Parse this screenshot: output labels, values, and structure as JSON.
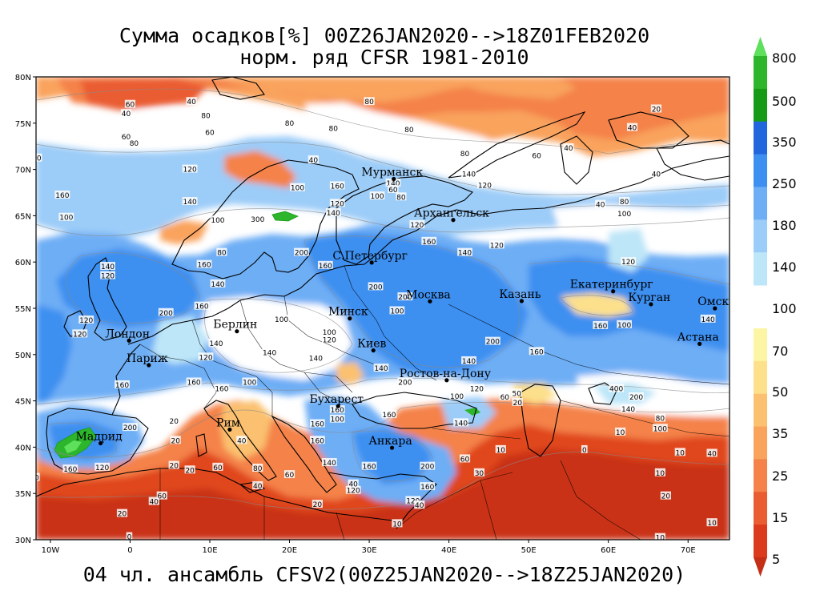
{
  "title_line1": "Сумма осадков[%] 00Z26JAN2020-->18Z01FEB2020",
  "title_line2": "норм. ряд CFSR 1981-2010",
  "footer": "04 чл. ансамбль CFSV2(00Z25JAN2020-->18Z25JAN2020)",
  "map": {
    "lat_labels": [
      "80N",
      "75N",
      "70N",
      "65N",
      "60N",
      "55N",
      "50N",
      "45N",
      "40N",
      "35N",
      "30N"
    ],
    "lon_labels": [
      "10W",
      "0",
      "10E",
      "20E",
      "30E",
      "40E",
      "50E",
      "60E",
      "70E"
    ],
    "cities": [
      {
        "name": "Мурманск",
        "lat": 68.97,
        "lon": 33.08
      },
      {
        "name": "Архангельск",
        "lat": 64.54,
        "lon": 40.54
      },
      {
        "name": "С.Петербург",
        "lat": 59.94,
        "lon": 30.31
      },
      {
        "name": "Москва",
        "lat": 55.75,
        "lon": 37.62
      },
      {
        "name": "Казань",
        "lat": 55.79,
        "lon": 49.12
      },
      {
        "name": "Екатеринбург",
        "lat": 56.84,
        "lon": 60.6
      },
      {
        "name": "Курган",
        "lat": 55.44,
        "lon": 65.34
      },
      {
        "name": "Омск",
        "lat": 54.99,
        "lon": 73.37
      },
      {
        "name": "Астана",
        "lat": 51.16,
        "lon": 71.45
      },
      {
        "name": "Минск",
        "lat": 53.9,
        "lon": 27.56
      },
      {
        "name": "Киев",
        "lat": 50.45,
        "lon": 30.52
      },
      {
        "name": "Берлин",
        "lat": 52.52,
        "lon": 13.4
      },
      {
        "name": "Лондон",
        "lat": 51.51,
        "lon": -0.13
      },
      {
        "name": "Париж",
        "lat": 48.86,
        "lon": 2.35
      },
      {
        "name": "Ростов-на-Дону",
        "lat": 47.23,
        "lon": 39.72
      },
      {
        "name": "Бухарест",
        "lat": 44.43,
        "lon": 26.1
      },
      {
        "name": "Рим",
        "lat": 41.9,
        "lon": 12.5
      },
      {
        "name": "Мадрид",
        "lat": 40.42,
        "lon": -3.7
      },
      {
        "name": "Анкара",
        "lat": 39.93,
        "lon": 32.86
      }
    ],
    "contour_values": [
      {
        "t": "100",
        "lat": 78.7,
        "lon": -13.5
      },
      {
        "t": "40",
        "lon": -0.5,
        "lat": 76
      },
      {
        "t": "60",
        "lon": 0,
        "lat": 77
      },
      {
        "t": "40",
        "lon": 7.7,
        "lat": 77.3
      },
      {
        "t": "80",
        "lon": 9.5,
        "lat": 75.8
      },
      {
        "t": "80",
        "lon": 25.5,
        "lat": 74.4
      },
      {
        "t": "80",
        "lon": 20,
        "lat": 75
      },
      {
        "t": "60",
        "lon": 10,
        "lat": 74
      },
      {
        "t": "80",
        "lon": 30,
        "lat": 77.3
      },
      {
        "t": "80",
        "lon": 35,
        "lat": 74.3
      },
      {
        "t": "80",
        "lon": 42,
        "lat": 71.7
      },
      {
        "t": "60",
        "lon": -0.5,
        "lat": 73.5
      },
      {
        "t": "80",
        "lon": 0.5,
        "lat": 72.8
      },
      {
        "t": "40",
        "lon": 23,
        "lat": 71
      },
      {
        "t": "60",
        "lon": 51,
        "lat": 71.5
      },
      {
        "t": "40",
        "lon": 55,
        "lat": 72.3
      },
      {
        "t": "20",
        "lon": 66,
        "lat": 76.5
      },
      {
        "t": "40",
        "lon": 63,
        "lat": 74.5
      },
      {
        "t": "40",
        "lon": 66,
        "lat": 69.5
      },
      {
        "t": "120",
        "lon": -12,
        "lat": 71.2
      },
      {
        "t": "140",
        "lon": -13,
        "lat": 68.8
      },
      {
        "t": "120",
        "lon": 7.5,
        "lat": 70
      },
      {
        "t": "160",
        "lon": -8.5,
        "lat": 67.2
      },
      {
        "t": "140",
        "lon": 7.5,
        "lat": 66.5
      },
      {
        "t": "100",
        "lon": -8,
        "lat": 64.8
      },
      {
        "t": "100",
        "lon": 11,
        "lat": 64.5
      },
      {
        "t": "160",
        "lon": 26,
        "lat": 68.2
      },
      {
        "t": "100",
        "lon": 21,
        "lat": 68
      },
      {
        "t": "120",
        "lon": 26,
        "lat": 66.3
      },
      {
        "t": "140",
        "lon": 33,
        "lat": 68.5
      },
      {
        "t": "60",
        "lon": 33,
        "lat": 67.8
      },
      {
        "t": "100",
        "lon": 31,
        "lat": 67.1
      },
      {
        "t": "80",
        "lon": 34,
        "lat": 67
      },
      {
        "t": "140",
        "lon": 25.5,
        "lat": 65.3
      },
      {
        "t": "140",
        "lon": 42.5,
        "lat": 69.5
      },
      {
        "t": "120",
        "lon": 44.5,
        "lat": 68.3
      },
      {
        "t": "40",
        "lon": 59,
        "lat": 66.2
      },
      {
        "t": "80",
        "lon": 62,
        "lat": 66.5
      },
      {
        "t": "100",
        "lon": 62,
        "lat": 65.2
      },
      {
        "t": "120",
        "lon": 36,
        "lat": 64
      },
      {
        "t": "160",
        "lon": 37.5,
        "lat": 62.2
      },
      {
        "t": "120",
        "lon": 46,
        "lat": 61.8
      },
      {
        "t": "140",
        "lon": 42,
        "lat": 61
      },
      {
        "t": "120",
        "lon": 62.5,
        "lat": 60
      },
      {
        "t": "300",
        "lon": 16,
        "lat": 64.6
      },
      {
        "t": "200",
        "lon": 21.5,
        "lat": 61
      },
      {
        "t": "160",
        "lon": 24.5,
        "lat": 59.6
      },
      {
        "t": "80",
        "lon": 11.5,
        "lat": 61
      },
      {
        "t": "160",
        "lon": 9.3,
        "lat": 59.7
      },
      {
        "t": "140",
        "lon": -2.8,
        "lat": 59.5
      },
      {
        "t": "120",
        "lon": -2.8,
        "lat": 58.5
      },
      {
        "t": "140",
        "lon": 11,
        "lat": 57.6
      },
      {
        "t": "200",
        "lon": 30.8,
        "lat": 57.3
      },
      {
        "t": "200",
        "lon": 34.5,
        "lat": 56.2
      },
      {
        "t": "100",
        "lon": 33.5,
        "lat": 54.7
      },
      {
        "t": "160",
        "lon": 9,
        "lat": 55.2
      },
      {
        "t": "200",
        "lon": 4.5,
        "lat": 54.5
      },
      {
        "t": "100",
        "lon": 19,
        "lat": 53.8
      },
      {
        "t": "100",
        "lon": 25,
        "lat": 52.4
      },
      {
        "t": "120",
        "lon": 25,
        "lat": 51.6
      },
      {
        "t": "140",
        "lon": 10.8,
        "lat": 51.2
      },
      {
        "t": "140",
        "lon": 17.5,
        "lat": 50.2
      },
      {
        "t": "140",
        "lon": 23.3,
        "lat": 49.6
      },
      {
        "t": "140",
        "lon": 31.5,
        "lat": 48.5
      },
      {
        "t": "200",
        "lon": 45.5,
        "lat": 51.4
      },
      {
        "t": "160",
        "lon": 51,
        "lat": 50.3
      },
      {
        "t": "140",
        "lon": 42.5,
        "lat": 49.3
      },
      {
        "t": "160",
        "lon": 59,
        "lat": 53.1
      },
      {
        "t": "100",
        "lon": 62,
        "lat": 53.2
      },
      {
        "t": "140",
        "lon": 72.5,
        "lat": 53.8
      },
      {
        "t": "120",
        "lon": -5.5,
        "lat": 53.7
      },
      {
        "t": "120",
        "lon": -6.3,
        "lat": 52.2
      },
      {
        "t": "160",
        "lon": -1,
        "lat": 46.7
      },
      {
        "t": "120",
        "lon": 9.5,
        "lat": 49.7
      },
      {
        "t": "160",
        "lon": 8,
        "lat": 47
      },
      {
        "t": "100",
        "lon": 15,
        "lat": 47
      },
      {
        "t": "160",
        "lon": 11.5,
        "lat": 46.3
      },
      {
        "t": "160",
        "lon": 26,
        "lat": 44
      },
      {
        "t": "100",
        "lon": 26,
        "lat": 43
      },
      {
        "t": "160",
        "lon": 32.5,
        "lat": 43.5
      },
      {
        "t": "200",
        "lon": 34.5,
        "lat": 47
      },
      {
        "t": "100",
        "lon": 41,
        "lat": 45.5
      },
      {
        "t": "120",
        "lon": 43.5,
        "lat": 46.3
      },
      {
        "t": "60",
        "lon": 47,
        "lat": 45.4
      },
      {
        "t": "50",
        "lon": 48.5,
        "lat": 45.8
      },
      {
        "t": "20",
        "lon": 48.6,
        "lat": 44.8
      },
      {
        "t": "400",
        "lon": 61,
        "lat": 46.3
      },
      {
        "t": "200",
        "lon": 63.5,
        "lat": 45.4
      },
      {
        "t": "140",
        "lon": 62.5,
        "lat": 44.1
      },
      {
        "t": "80",
        "lon": 66.5,
        "lat": 43.1
      },
      {
        "t": "100",
        "lon": 66.5,
        "lat": 42
      },
      {
        "t": "200",
        "lon": -13,
        "lat": 44
      },
      {
        "t": "200",
        "lon": 0,
        "lat": 42.1
      },
      {
        "t": "20",
        "lon": 5.5,
        "lat": 42.8
      },
      {
        "t": "20",
        "lon": 5.7,
        "lat": 40.7
      },
      {
        "t": "40",
        "lon": 14,
        "lat": 40.7
      },
      {
        "t": "160",
        "lon": 23.5,
        "lat": 42.5
      },
      {
        "t": "160",
        "lon": 23.5,
        "lat": 40.7
      },
      {
        "t": "140",
        "lon": 25,
        "lat": 38.3
      },
      {
        "t": "140",
        "lon": 41.5,
        "lat": 42.6
      },
      {
        "t": "160",
        "lon": 30,
        "lat": 37.9
      },
      {
        "t": "200",
        "lon": 37.3,
        "lat": 37.9
      },
      {
        "t": "60",
        "lon": 42,
        "lat": 38.7
      },
      {
        "t": "30",
        "lon": 43.8,
        "lat": 37.2
      },
      {
        "t": "10",
        "lon": 46.5,
        "lat": 39.7
      },
      {
        "t": "0",
        "lon": 57,
        "lat": 39.7
      },
      {
        "t": "10",
        "lon": 61.5,
        "lat": 41.6
      },
      {
        "t": "10",
        "lon": 66.5,
        "lat": 37.2
      },
      {
        "t": "20",
        "lon": 67.2,
        "lat": 34.7
      },
      {
        "t": "40",
        "lon": 73,
        "lat": 39.3
      },
      {
        "t": "10",
        "lon": 69,
        "lat": 39.4
      },
      {
        "t": "10",
        "lon": 66.5,
        "lat": 30.2
      },
      {
        "t": "120",
        "lon": -3.5,
        "lat": 37.8
      },
      {
        "t": "160",
        "lon": -7.5,
        "lat": 37.6
      },
      {
        "t": "40",
        "lon": -12,
        "lat": 36.7
      },
      {
        "t": "20",
        "lon": 7.5,
        "lat": 37.5
      },
      {
        "t": "60",
        "lon": 11,
        "lat": 37.8
      },
      {
        "t": "40",
        "lon": 16,
        "lat": 35.8
      },
      {
        "t": "60",
        "lon": 20,
        "lat": 37
      },
      {
        "t": "80",
        "lon": 16,
        "lat": 37.7
      },
      {
        "t": "40",
        "lon": 3,
        "lat": 34.1
      },
      {
        "t": "60",
        "lon": 4,
        "lat": 34.7
      },
      {
        "t": "20",
        "lon": -1,
        "lat": 32.8
      },
      {
        "t": "0",
        "lon": -0.1,
        "lat": 30.3
      },
      {
        "t": "20",
        "lon": 23.5,
        "lat": 33.8
      },
      {
        "t": "120",
        "lon": 28,
        "lat": 35.3
      },
      {
        "t": "40",
        "lon": 28,
        "lat": 36
      },
      {
        "t": "10",
        "lon": 33.5,
        "lat": 31.7
      },
      {
        "t": "120",
        "lon": 35.5,
        "lat": 34.2
      },
      {
        "t": "40",
        "lon": 36.3,
        "lat": 33.7
      },
      {
        "t": "160",
        "lon": 37.3,
        "lat": 35.7
      },
      {
        "t": "20",
        "lon": 5.5,
        "lat": 38
      },
      {
        "t": "10",
        "lon": 73,
        "lat": 31.8
      }
    ]
  },
  "colorbar": {
    "labels": [
      "800",
      "500",
      "350",
      "250",
      "180",
      "140",
      "100",
      "70",
      "50",
      "35",
      "25",
      "15",
      "5"
    ],
    "upper_colors": [
      "#5ee05c",
      "#2db52c",
      "#179a16",
      "#2266dd",
      "#3d8ff0",
      "#6eaef5",
      "#9cccf8",
      "#bde6f8"
    ],
    "lower_colors": [
      "#fcf6a4",
      "#fde08b",
      "#fbc170",
      "#f9a35d",
      "#f4824a",
      "#ea5c31",
      "#dc3a1d",
      "#c42f16"
    ]
  },
  "palette": {
    "red_deep": "#c93014",
    "red": "#e0471f",
    "orange": "#f4824a",
    "orange_light": "#f9a35d",
    "tan": "#fbc170",
    "yellow": "#fde08b",
    "cream": "#fcf6a4",
    "white": "#ffffff",
    "blue_pale": "#bde6f8",
    "blue_light": "#9cccf8",
    "blue": "#6eaef5",
    "blue_mid": "#3d8ff0",
    "blue_deep": "#2266dd",
    "green": "#2db52c"
  }
}
